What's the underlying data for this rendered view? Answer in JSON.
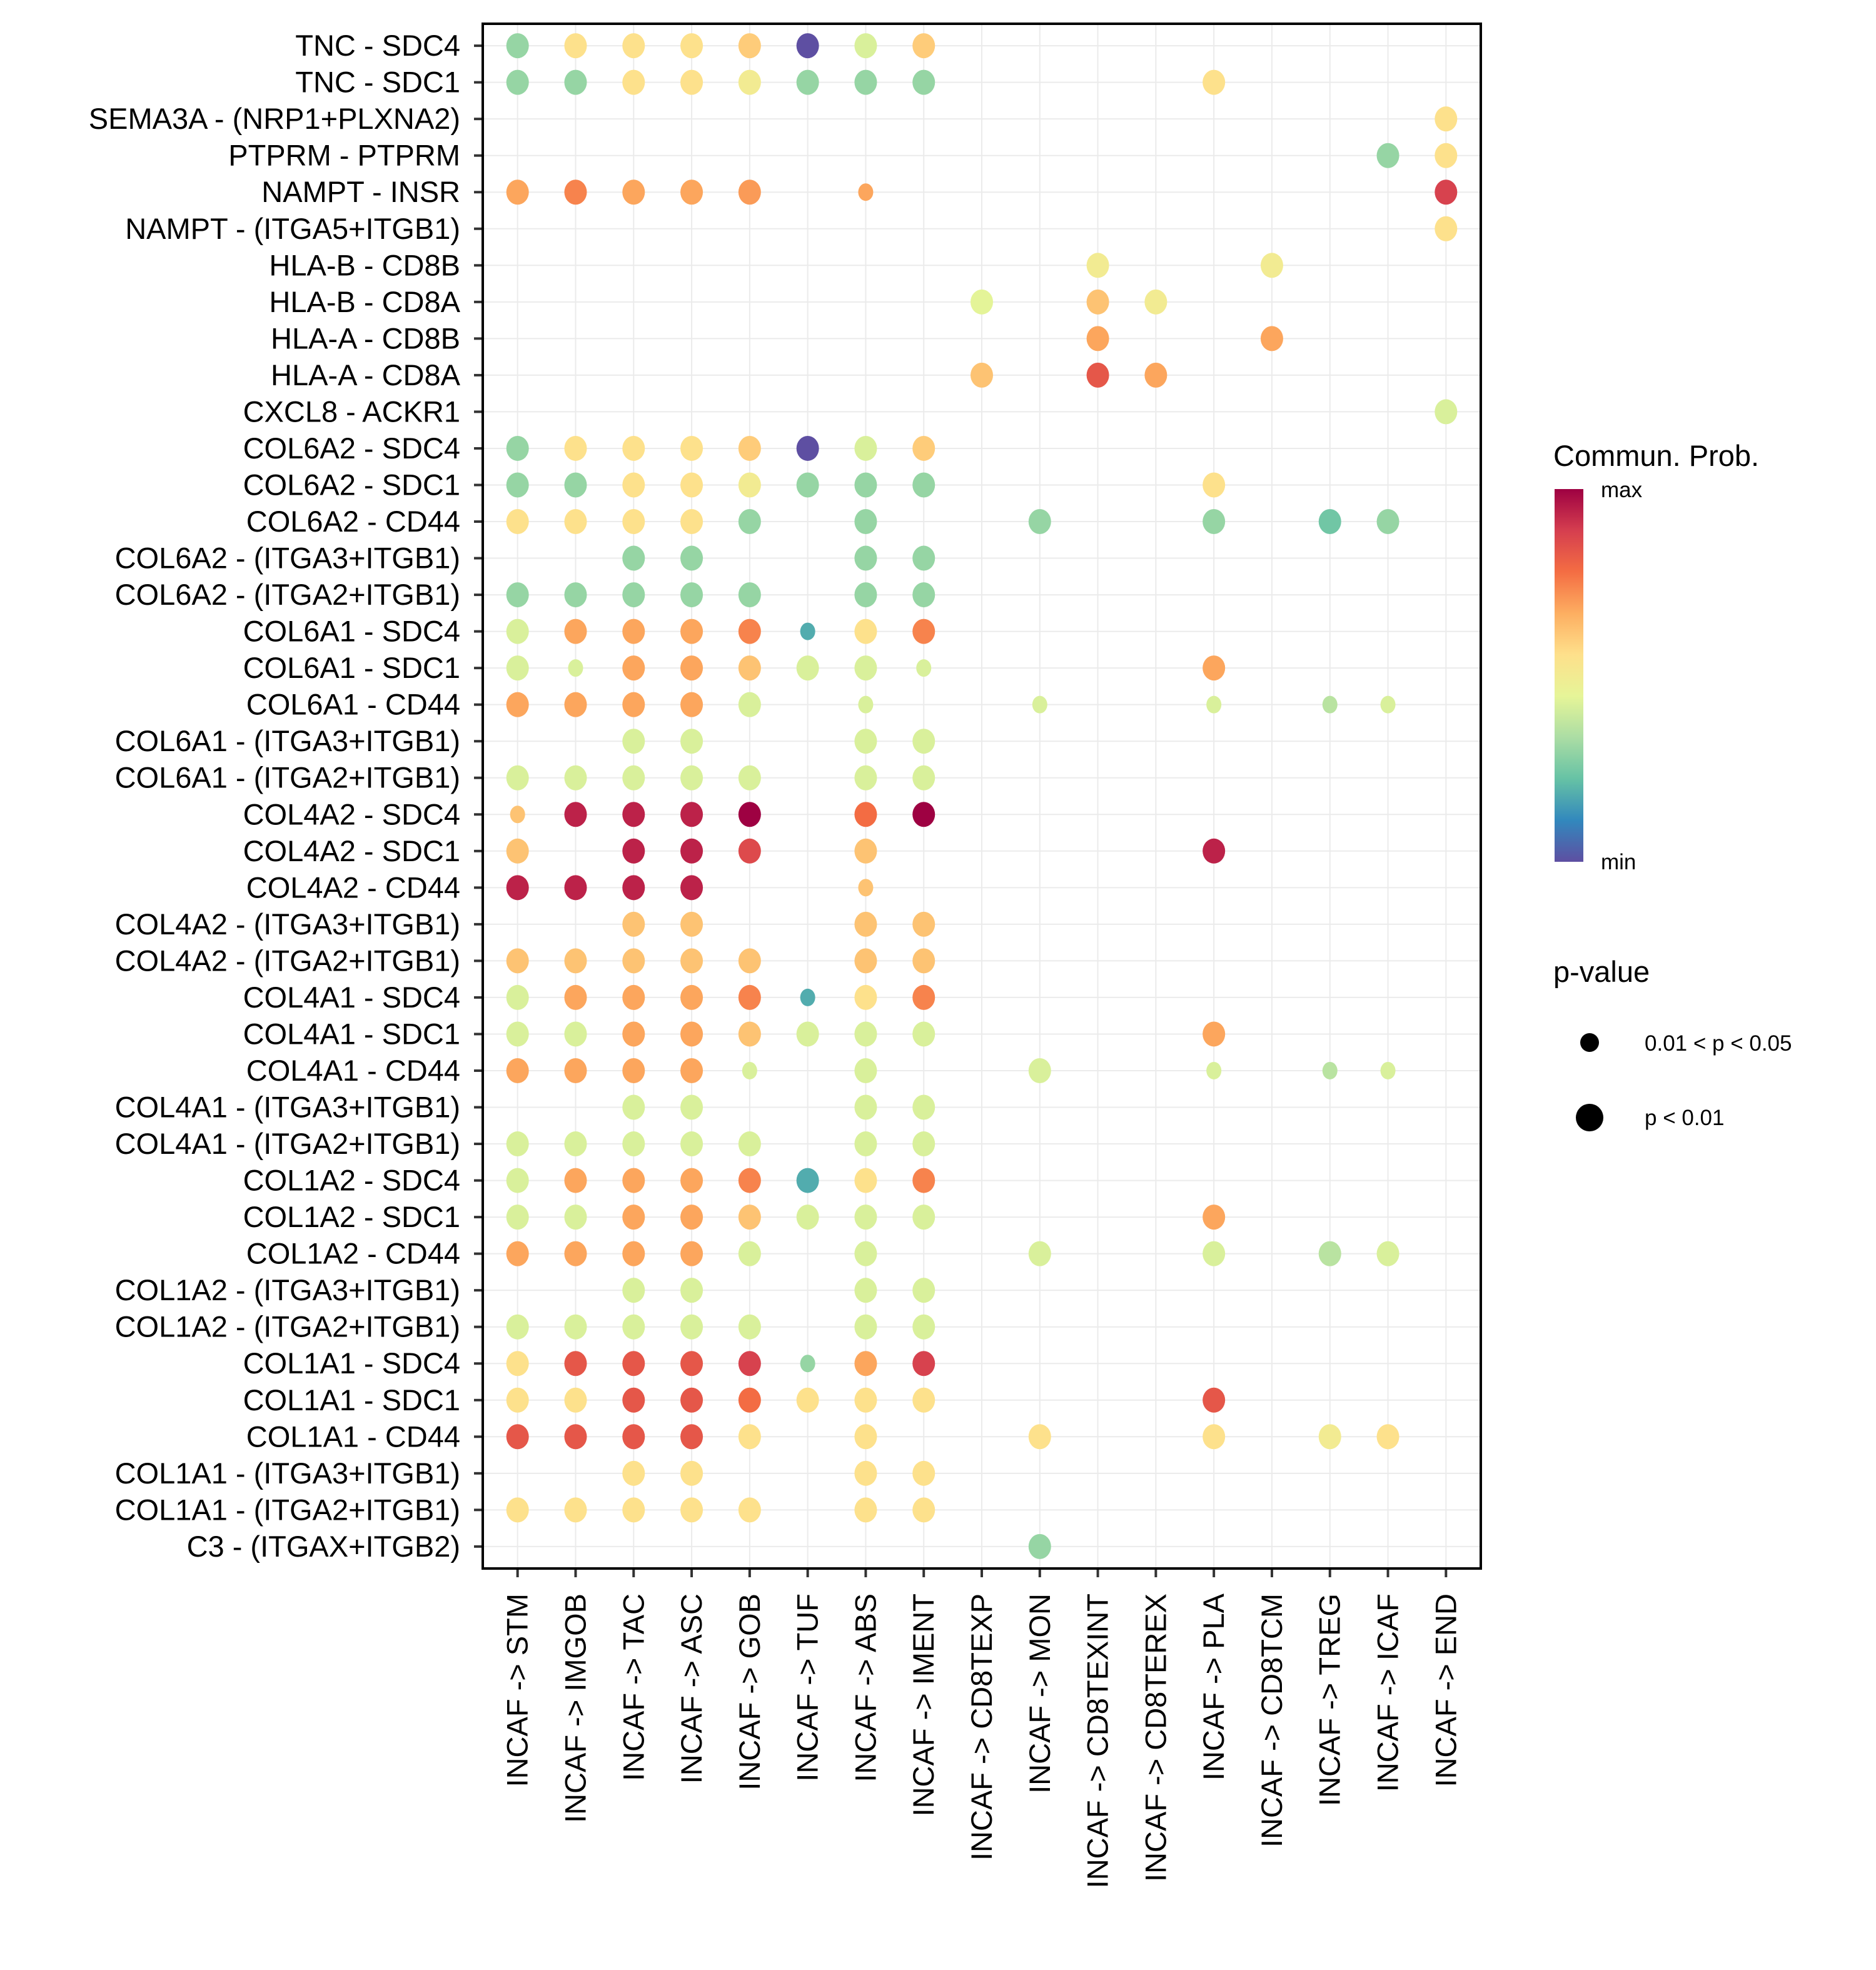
{
  "chart_data": {
    "type": "scatter",
    "subtype": "dot-plot",
    "title": "",
    "xlabel": "",
    "ylabel": "",
    "grid": true,
    "x_categories": [
      "INCAF -> STM",
      "INCAF -> IMGOB",
      "INCAF -> TAC",
      "INCAF -> ASC",
      "INCAF -> GOB",
      "INCAF -> TUF",
      "INCAF -> ABS",
      "INCAF -> IMENT",
      "INCAF -> CD8TEXP",
      "INCAF -> MON",
      "INCAF -> CD8TEXINT",
      "INCAF -> CD8TEREX",
      "INCAF -> PLA",
      "INCAF -> CD8TCM",
      "INCAF -> TREG",
      "INCAF -> ICAF",
      "INCAF -> END"
    ],
    "y_categories": [
      "TNC - SDC4",
      "TNC - SDC1",
      "SEMA3A - (NRP1+PLXNA2)",
      "PTPRM - PTPRM",
      "NAMPT - INSR",
      "NAMPT - (ITGA5+ITGB1)",
      "HLA-B - CD8B",
      "HLA-B - CD8A",
      "HLA-A - CD8B",
      "HLA-A - CD8A",
      "CXCL8 - ACKR1",
      "COL6A2 - SDC4",
      "COL6A2 - SDC1",
      "COL6A2 - CD44",
      "COL6A2 - (ITGA3+ITGB1)",
      "COL6A2 - (ITGA2+ITGB1)",
      "COL6A1 - SDC4",
      "COL6A1 - SDC1",
      "COL6A1 - CD44",
      "COL6A1 - (ITGA3+ITGB1)",
      "COL6A1 - (ITGA2+ITGB1)",
      "COL4A2 - SDC4",
      "COL4A2 - SDC1",
      "COL4A2 - CD44",
      "COL4A2 - (ITGA3+ITGB1)",
      "COL4A2 - (ITGA2+ITGB1)",
      "COL4A1 - SDC4",
      "COL4A1 - SDC1",
      "COL4A1 - CD44",
      "COL4A1 - (ITGA3+ITGB1)",
      "COL4A1 - (ITGA2+ITGB1)",
      "COL1A2 - SDC4",
      "COL1A2 - SDC1",
      "COL1A2 - CD44",
      "COL1A2 - (ITGA3+ITGB1)",
      "COL1A2 - (ITGA2+ITGB1)",
      "COL1A1 - SDC4",
      "COL1A1 - SDC1",
      "COL1A1 - CD44",
      "COL1A1 - (ITGA3+ITGB1)",
      "COL1A1 - (ITGA2+ITGB1)",
      "C3 - (ITGAX+ITGB2)"
    ],
    "value_scale": "normalized communication probability, 0 = min, 1 = max (estimated from color)",
    "points_format": "[row_index, col_index, prob, pval_class] where pval_class 1 = p < 0.01, 0 = 0.01 < p < 0.05",
    "points": [
      [
        0,
        0,
        0.3,
        1
      ],
      [
        0,
        1,
        0.55,
        1
      ],
      [
        0,
        2,
        0.55,
        1
      ],
      [
        0,
        3,
        0.55,
        1
      ],
      [
        0,
        4,
        0.6,
        1
      ],
      [
        0,
        5,
        0.0,
        1
      ],
      [
        0,
        6,
        0.42,
        1
      ],
      [
        0,
        7,
        0.6,
        1
      ],
      [
        1,
        0,
        0.3,
        1
      ],
      [
        1,
        1,
        0.3,
        1
      ],
      [
        1,
        2,
        0.55,
        1
      ],
      [
        1,
        3,
        0.55,
        1
      ],
      [
        1,
        4,
        0.5,
        1
      ],
      [
        1,
        5,
        0.3,
        1
      ],
      [
        1,
        6,
        0.3,
        1
      ],
      [
        1,
        7,
        0.3,
        1
      ],
      [
        1,
        12,
        0.55,
        1
      ],
      [
        2,
        16,
        0.55,
        1
      ],
      [
        3,
        15,
        0.3,
        1
      ],
      [
        3,
        16,
        0.55,
        1
      ],
      [
        4,
        0,
        0.68,
        1
      ],
      [
        4,
        1,
        0.74,
        1
      ],
      [
        4,
        2,
        0.68,
        1
      ],
      [
        4,
        3,
        0.68,
        1
      ],
      [
        4,
        4,
        0.7,
        1
      ],
      [
        4,
        6,
        0.68,
        0
      ],
      [
        4,
        16,
        0.88,
        1
      ],
      [
        5,
        16,
        0.55,
        1
      ],
      [
        6,
        10,
        0.5,
        1
      ],
      [
        6,
        13,
        0.5,
        1
      ],
      [
        7,
        8,
        0.44,
        1
      ],
      [
        7,
        10,
        0.62,
        1
      ],
      [
        7,
        11,
        0.5,
        1
      ],
      [
        8,
        10,
        0.68,
        1
      ],
      [
        8,
        13,
        0.68,
        1
      ],
      [
        9,
        8,
        0.62,
        1
      ],
      [
        9,
        10,
        0.83,
        1
      ],
      [
        9,
        11,
        0.68,
        1
      ],
      [
        10,
        16,
        0.42,
        1
      ],
      [
        11,
        0,
        0.3,
        1
      ],
      [
        11,
        1,
        0.55,
        1
      ],
      [
        11,
        2,
        0.55,
        1
      ],
      [
        11,
        3,
        0.55,
        1
      ],
      [
        11,
        4,
        0.6,
        1
      ],
      [
        11,
        5,
        0.0,
        1
      ],
      [
        11,
        6,
        0.42,
        1
      ],
      [
        11,
        7,
        0.6,
        1
      ],
      [
        12,
        0,
        0.3,
        1
      ],
      [
        12,
        1,
        0.3,
        1
      ],
      [
        12,
        2,
        0.55,
        1
      ],
      [
        12,
        3,
        0.55,
        1
      ],
      [
        12,
        4,
        0.5,
        1
      ],
      [
        12,
        5,
        0.3,
        1
      ],
      [
        12,
        6,
        0.3,
        1
      ],
      [
        12,
        7,
        0.3,
        1
      ],
      [
        12,
        12,
        0.55,
        1
      ],
      [
        13,
        0,
        0.55,
        1
      ],
      [
        13,
        1,
        0.55,
        1
      ],
      [
        13,
        2,
        0.55,
        1
      ],
      [
        13,
        3,
        0.55,
        1
      ],
      [
        13,
        4,
        0.3,
        1
      ],
      [
        13,
        6,
        0.3,
        1
      ],
      [
        13,
        9,
        0.3,
        1
      ],
      [
        13,
        12,
        0.3,
        1
      ],
      [
        13,
        14,
        0.24,
        1
      ],
      [
        13,
        15,
        0.3,
        1
      ],
      [
        14,
        2,
        0.3,
        1
      ],
      [
        14,
        3,
        0.3,
        1
      ],
      [
        14,
        6,
        0.3,
        1
      ],
      [
        14,
        7,
        0.3,
        1
      ],
      [
        15,
        0,
        0.3,
        1
      ],
      [
        15,
        1,
        0.3,
        1
      ],
      [
        15,
        2,
        0.3,
        1
      ],
      [
        15,
        3,
        0.3,
        1
      ],
      [
        15,
        4,
        0.3,
        1
      ],
      [
        15,
        6,
        0.3,
        1
      ],
      [
        15,
        7,
        0.3,
        1
      ],
      [
        16,
        0,
        0.42,
        1
      ],
      [
        16,
        1,
        0.68,
        1
      ],
      [
        16,
        2,
        0.68,
        1
      ],
      [
        16,
        3,
        0.68,
        1
      ],
      [
        16,
        4,
        0.74,
        1
      ],
      [
        16,
        5,
        0.18,
        0
      ],
      [
        16,
        6,
        0.55,
        1
      ],
      [
        16,
        7,
        0.74,
        1
      ],
      [
        17,
        0,
        0.42,
        1
      ],
      [
        17,
        1,
        0.42,
        0
      ],
      [
        17,
        2,
        0.68,
        1
      ],
      [
        17,
        3,
        0.68,
        1
      ],
      [
        17,
        4,
        0.62,
        1
      ],
      [
        17,
        5,
        0.42,
        1
      ],
      [
        17,
        6,
        0.42,
        1
      ],
      [
        17,
        7,
        0.42,
        0
      ],
      [
        17,
        12,
        0.68,
        1
      ],
      [
        18,
        0,
        0.68,
        1
      ],
      [
        18,
        1,
        0.68,
        1
      ],
      [
        18,
        2,
        0.68,
        1
      ],
      [
        18,
        3,
        0.68,
        1
      ],
      [
        18,
        4,
        0.42,
        1
      ],
      [
        18,
        6,
        0.42,
        0
      ],
      [
        18,
        9,
        0.42,
        0
      ],
      [
        18,
        12,
        0.42,
        0
      ],
      [
        18,
        14,
        0.36,
        0
      ],
      [
        18,
        15,
        0.42,
        0
      ],
      [
        19,
        2,
        0.42,
        1
      ],
      [
        19,
        3,
        0.42,
        1
      ],
      [
        19,
        6,
        0.42,
        1
      ],
      [
        19,
        7,
        0.42,
        1
      ],
      [
        20,
        0,
        0.42,
        1
      ],
      [
        20,
        1,
        0.42,
        1
      ],
      [
        20,
        2,
        0.42,
        1
      ],
      [
        20,
        3,
        0.42,
        1
      ],
      [
        20,
        4,
        0.42,
        1
      ],
      [
        20,
        6,
        0.42,
        1
      ],
      [
        20,
        7,
        0.42,
        1
      ],
      [
        21,
        0,
        0.62,
        0
      ],
      [
        21,
        1,
        0.94,
        1
      ],
      [
        21,
        2,
        0.94,
        1
      ],
      [
        21,
        3,
        0.94,
        1
      ],
      [
        21,
        4,
        1.0,
        1
      ],
      [
        21,
        6,
        0.78,
        1
      ],
      [
        21,
        7,
        1.0,
        1
      ],
      [
        22,
        0,
        0.62,
        1
      ],
      [
        22,
        2,
        0.94,
        1
      ],
      [
        22,
        3,
        0.94,
        1
      ],
      [
        22,
        4,
        0.86,
        1
      ],
      [
        22,
        6,
        0.62,
        1
      ],
      [
        22,
        12,
        0.94,
        1
      ],
      [
        23,
        0,
        0.94,
        1
      ],
      [
        23,
        1,
        0.94,
        1
      ],
      [
        23,
        2,
        0.94,
        1
      ],
      [
        23,
        3,
        0.94,
        1
      ],
      [
        23,
        6,
        0.62,
        0
      ],
      [
        24,
        2,
        0.62,
        1
      ],
      [
        24,
        3,
        0.62,
        1
      ],
      [
        24,
        6,
        0.62,
        1
      ],
      [
        24,
        7,
        0.62,
        1
      ],
      [
        25,
        0,
        0.62,
        1
      ],
      [
        25,
        1,
        0.62,
        1
      ],
      [
        25,
        2,
        0.62,
        1
      ],
      [
        25,
        3,
        0.62,
        1
      ],
      [
        25,
        4,
        0.62,
        1
      ],
      [
        25,
        6,
        0.62,
        1
      ],
      [
        25,
        7,
        0.62,
        1
      ],
      [
        26,
        0,
        0.42,
        1
      ],
      [
        26,
        1,
        0.68,
        1
      ],
      [
        26,
        2,
        0.68,
        1
      ],
      [
        26,
        3,
        0.68,
        1
      ],
      [
        26,
        4,
        0.74,
        1
      ],
      [
        26,
        5,
        0.18,
        0
      ],
      [
        26,
        6,
        0.55,
        1
      ],
      [
        26,
        7,
        0.74,
        1
      ],
      [
        27,
        0,
        0.42,
        1
      ],
      [
        27,
        1,
        0.42,
        1
      ],
      [
        27,
        2,
        0.68,
        1
      ],
      [
        27,
        3,
        0.68,
        1
      ],
      [
        27,
        4,
        0.62,
        1
      ],
      [
        27,
        5,
        0.42,
        1
      ],
      [
        27,
        6,
        0.42,
        1
      ],
      [
        27,
        7,
        0.42,
        1
      ],
      [
        27,
        12,
        0.68,
        1
      ],
      [
        28,
        0,
        0.68,
        1
      ],
      [
        28,
        1,
        0.68,
        1
      ],
      [
        28,
        2,
        0.68,
        1
      ],
      [
        28,
        3,
        0.68,
        1
      ],
      [
        28,
        4,
        0.42,
        0
      ],
      [
        28,
        6,
        0.42,
        1
      ],
      [
        28,
        9,
        0.42,
        1
      ],
      [
        28,
        12,
        0.42,
        0
      ],
      [
        28,
        14,
        0.36,
        0
      ],
      [
        28,
        15,
        0.42,
        0
      ],
      [
        29,
        2,
        0.42,
        1
      ],
      [
        29,
        3,
        0.42,
        1
      ],
      [
        29,
        6,
        0.42,
        1
      ],
      [
        29,
        7,
        0.42,
        1
      ],
      [
        30,
        0,
        0.42,
        1
      ],
      [
        30,
        1,
        0.42,
        1
      ],
      [
        30,
        2,
        0.42,
        1
      ],
      [
        30,
        3,
        0.42,
        1
      ],
      [
        30,
        4,
        0.42,
        1
      ],
      [
        30,
        6,
        0.42,
        1
      ],
      [
        30,
        7,
        0.42,
        1
      ],
      [
        31,
        0,
        0.42,
        1
      ],
      [
        31,
        1,
        0.68,
        1
      ],
      [
        31,
        2,
        0.68,
        1
      ],
      [
        31,
        3,
        0.68,
        1
      ],
      [
        31,
        4,
        0.74,
        1
      ],
      [
        31,
        5,
        0.18,
        1
      ],
      [
        31,
        6,
        0.55,
        1
      ],
      [
        31,
        7,
        0.74,
        1
      ],
      [
        32,
        0,
        0.42,
        1
      ],
      [
        32,
        1,
        0.42,
        1
      ],
      [
        32,
        2,
        0.68,
        1
      ],
      [
        32,
        3,
        0.68,
        1
      ],
      [
        32,
        4,
        0.62,
        1
      ],
      [
        32,
        5,
        0.42,
        1
      ],
      [
        32,
        6,
        0.42,
        1
      ],
      [
        32,
        7,
        0.42,
        1
      ],
      [
        32,
        12,
        0.68,
        1
      ],
      [
        33,
        0,
        0.68,
        1
      ],
      [
        33,
        1,
        0.68,
        1
      ],
      [
        33,
        2,
        0.68,
        1
      ],
      [
        33,
        3,
        0.68,
        1
      ],
      [
        33,
        4,
        0.42,
        1
      ],
      [
        33,
        6,
        0.42,
        1
      ],
      [
        33,
        9,
        0.42,
        1
      ],
      [
        33,
        12,
        0.42,
        1
      ],
      [
        33,
        14,
        0.36,
        1
      ],
      [
        33,
        15,
        0.42,
        1
      ],
      [
        34,
        2,
        0.42,
        1
      ],
      [
        34,
        3,
        0.42,
        1
      ],
      [
        34,
        6,
        0.42,
        1
      ],
      [
        34,
        7,
        0.42,
        1
      ],
      [
        35,
        0,
        0.42,
        1
      ],
      [
        35,
        1,
        0.42,
        1
      ],
      [
        35,
        2,
        0.42,
        1
      ],
      [
        35,
        3,
        0.42,
        1
      ],
      [
        35,
        4,
        0.42,
        1
      ],
      [
        35,
        6,
        0.42,
        1
      ],
      [
        35,
        7,
        0.42,
        1
      ],
      [
        36,
        0,
        0.55,
        1
      ],
      [
        36,
        1,
        0.83,
        1
      ],
      [
        36,
        2,
        0.83,
        1
      ],
      [
        36,
        3,
        0.83,
        1
      ],
      [
        36,
        4,
        0.88,
        1
      ],
      [
        36,
        5,
        0.3,
        0
      ],
      [
        36,
        6,
        0.68,
        1
      ],
      [
        36,
        7,
        0.88,
        1
      ],
      [
        37,
        0,
        0.55,
        1
      ],
      [
        37,
        1,
        0.55,
        1
      ],
      [
        37,
        2,
        0.83,
        1
      ],
      [
        37,
        3,
        0.83,
        1
      ],
      [
        37,
        4,
        0.78,
        1
      ],
      [
        37,
        5,
        0.55,
        1
      ],
      [
        37,
        6,
        0.55,
        1
      ],
      [
        37,
        7,
        0.55,
        1
      ],
      [
        37,
        12,
        0.83,
        1
      ],
      [
        38,
        0,
        0.83,
        1
      ],
      [
        38,
        1,
        0.83,
        1
      ],
      [
        38,
        2,
        0.83,
        1
      ],
      [
        38,
        3,
        0.83,
        1
      ],
      [
        38,
        4,
        0.55,
        1
      ],
      [
        38,
        6,
        0.55,
        1
      ],
      [
        38,
        9,
        0.55,
        1
      ],
      [
        38,
        12,
        0.55,
        1
      ],
      [
        38,
        14,
        0.5,
        1
      ],
      [
        38,
        15,
        0.55,
        1
      ],
      [
        39,
        2,
        0.55,
        1
      ],
      [
        39,
        3,
        0.55,
        1
      ],
      [
        39,
        6,
        0.55,
        1
      ],
      [
        39,
        7,
        0.55,
        1
      ],
      [
        40,
        0,
        0.55,
        1
      ],
      [
        40,
        1,
        0.55,
        1
      ],
      [
        40,
        2,
        0.55,
        1
      ],
      [
        40,
        3,
        0.55,
        1
      ],
      [
        40,
        4,
        0.55,
        1
      ],
      [
        40,
        6,
        0.55,
        1
      ],
      [
        40,
        7,
        0.55,
        1
      ],
      [
        41,
        9,
        0.3,
        1
      ]
    ],
    "colorscale": {
      "title": "Commun. Prob.",
      "max_label": "max",
      "min_label": "min",
      "stops": [
        "#5E4FA2",
        "#3288BD",
        "#66C2A5",
        "#ABDDA4",
        "#E6F598",
        "#FEE08B",
        "#FDAE61",
        "#F46D43",
        "#D53E4F",
        "#9E0142"
      ]
    },
    "size_legend": {
      "title": "p-value",
      "entries": [
        {
          "label": "0.01 < p < 0.05",
          "pval_class": 0
        },
        {
          "label": "p < 0.01",
          "pval_class": 1
        }
      ]
    },
    "legend_position": "right"
  }
}
